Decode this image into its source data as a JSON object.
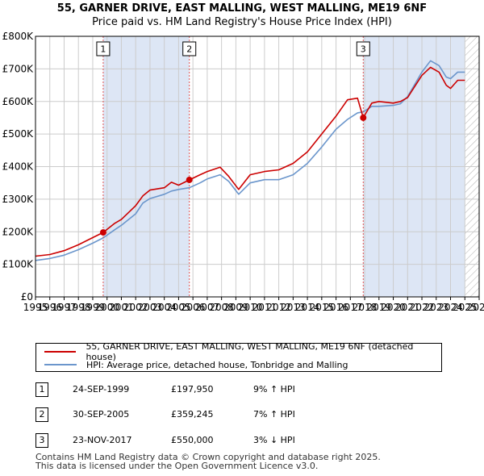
{
  "title": "55, GARNER DRIVE, EAST MALLING, WEST MALLING, ME19 6NF",
  "subtitle": "Price paid vs. HM Land Registry's House Price Index (HPI)",
  "colors": {
    "property": "#cc0000",
    "hpi": "#6b96cc",
    "marker_line": "#e05050",
    "shade": "#dde6f5",
    "grid": "#cccccc"
  },
  "chart_data": {
    "type": "line",
    "title": "Price paid vs. HM Land Registry's House Price Index (HPI)",
    "xlabel": "",
    "ylabel": "",
    "xlim": [
      1995,
      2026
    ],
    "ylim": [
      0,
      800000
    ],
    "y_ticks": [
      0,
      100000,
      200000,
      300000,
      400000,
      500000,
      600000,
      700000,
      800000
    ],
    "y_tick_labels": [
      "£0",
      "£100K",
      "£200K",
      "£300K",
      "£400K",
      "£500K",
      "£600K",
      "£700K",
      "£800K"
    ],
    "x_ticks": [
      "1995",
      "1996",
      "1997",
      "1998",
      "1999",
      "2000",
      "2001",
      "2002",
      "2003",
      "2004",
      "2005",
      "2006",
      "2007",
      "2008",
      "2009",
      "2010",
      "2011",
      "2012",
      "2013",
      "2014",
      "2015",
      "2016",
      "2017",
      "2018",
      "2019",
      "2020",
      "2021",
      "2022",
      "2023",
      "2024",
      "2025",
      "2026"
    ],
    "series": [
      {
        "name": "55, GARNER DRIVE, EAST MALLING, WEST MALLING, ME19 6NF (detached house)",
        "color": "#cc0000",
        "x": [
          1995.0,
          1996.0,
          1997.0,
          1998.0,
          1999.0,
          1999.73,
          2000.5,
          2001.0,
          2002.0,
          2002.5,
          2003.0,
          2004.0,
          2004.5,
          2005.0,
          2005.75,
          2006.5,
          2007.0,
          2007.9,
          2008.5,
          2009.2,
          2010.0,
          2011.0,
          2012.0,
          2013.0,
          2014.0,
          2015.0,
          2016.0,
          2016.8,
          2017.5,
          2017.9,
          2018.5,
          2019.0,
          2020.0,
          2020.5,
          2021.0,
          2022.0,
          2022.6,
          2023.2,
          2023.7,
          2024.0,
          2024.5,
          2025.0
        ],
        "y": [
          125000,
          130000,
          142000,
          160000,
          182000,
          197950,
          225000,
          238000,
          280000,
          310000,
          328000,
          335000,
          352000,
          343000,
          359245,
          375000,
          385000,
          398000,
          370000,
          330000,
          375000,
          385000,
          390000,
          410000,
          445000,
          500000,
          555000,
          605000,
          610000,
          550000,
          595000,
          600000,
          595000,
          600000,
          612000,
          680000,
          705000,
          690000,
          650000,
          640000,
          665000,
          665000
        ]
      },
      {
        "name": "HPI: Average price, detached house, Tonbridge and Malling",
        "color": "#6b96cc",
        "x": [
          1995.0,
          1996.0,
          1997.0,
          1998.0,
          1999.0,
          1999.73,
          2000.5,
          2001.0,
          2002.0,
          2002.5,
          2003.0,
          2004.0,
          2004.5,
          2005.0,
          2005.75,
          2006.5,
          2007.0,
          2007.9,
          2008.5,
          2009.2,
          2010.0,
          2011.0,
          2012.0,
          2013.0,
          2014.0,
          2015.0,
          2016.0,
          2016.8,
          2017.5,
          2017.9,
          2018.5,
          2019.0,
          2020.0,
          2020.5,
          2021.0,
          2022.0,
          2022.6,
          2023.2,
          2023.7,
          2024.0,
          2024.5,
          2025.0
        ],
        "y": [
          112000,
          118000,
          128000,
          145000,
          165000,
          181000,
          205000,
          220000,
          255000,
          288000,
          302000,
          315000,
          325000,
          330000,
          335000,
          350000,
          362000,
          375000,
          355000,
          315000,
          350000,
          360000,
          360000,
          375000,
          410000,
          460000,
          515000,
          545000,
          565000,
          568000,
          585000,
          585000,
          588000,
          593000,
          615000,
          690000,
          725000,
          710000,
          675000,
          670000,
          690000,
          690000
        ]
      }
    ],
    "sales": [
      {
        "n": "1",
        "x": 1999.73,
        "y": 197950,
        "date": "24-SEP-1999",
        "price": "£197,950",
        "hpi": "9% ↑ HPI"
      },
      {
        "n": "2",
        "x": 2005.75,
        "y": 359245,
        "date": "30-SEP-2005",
        "price": "£359,245",
        "hpi": "7% ↑ HPI"
      },
      {
        "n": "3",
        "x": 2017.9,
        "y": 550000,
        "date": "23-NOV-2017",
        "price": "£550,000",
        "hpi": "3% ↓ HPI"
      }
    ]
  },
  "legend": {
    "property_label": "55, GARNER DRIVE, EAST MALLING, WEST MALLING, ME19 6NF (detached house)",
    "hpi_label": "HPI: Average price, detached house, Tonbridge and Malling"
  },
  "footer": {
    "line1": "Contains HM Land Registry data © Crown copyright and database right 2025.",
    "line2": "This data is licensed under the Open Government Licence v3.0."
  }
}
